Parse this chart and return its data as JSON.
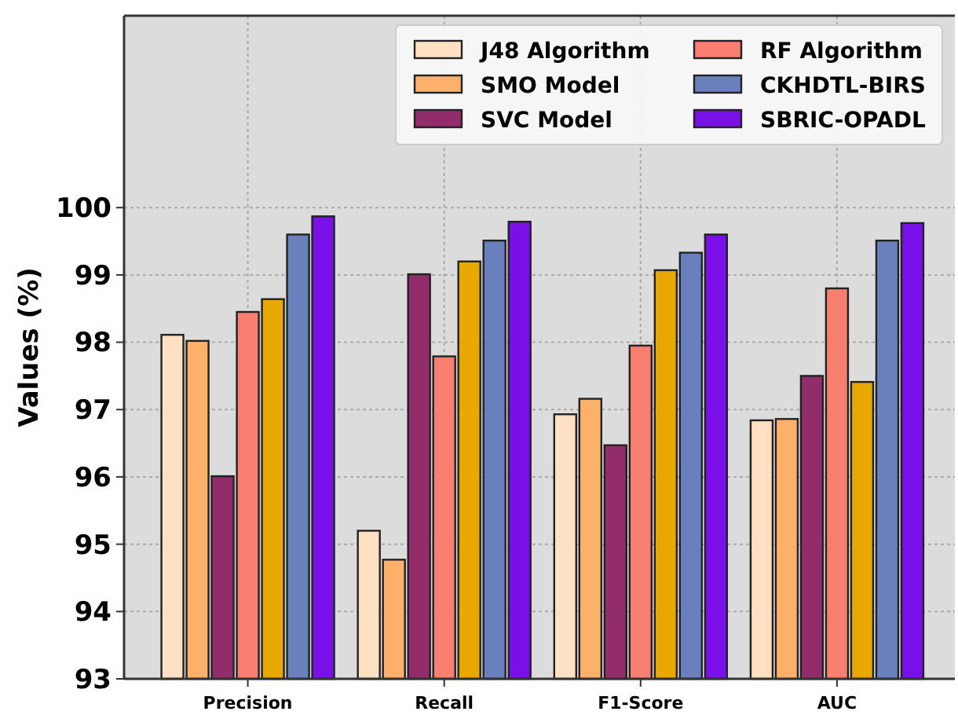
{
  "chart_data": {
    "type": "bar",
    "ylabel": "Values (%)",
    "categories": [
      "Precision",
      "Recall",
      "F1-Score",
      "AUC"
    ],
    "series": [
      {
        "name": "J48 Algorithm",
        "color": "#ffe0c2",
        "values": [
          98.11,
          95.2,
          96.93,
          96.84
        ]
      },
      {
        "name": "SMO Model",
        "color": "#fdb06a",
        "values": [
          98.02,
          94.77,
          97.16,
          96.86
        ]
      },
      {
        "name": "SVC Model",
        "color": "#922c6a",
        "values": [
          96.01,
          99.01,
          96.47,
          97.5
        ]
      },
      {
        "name": "RF Algorithm",
        "color": "#f87e70",
        "values": [
          98.45,
          97.79,
          97.95,
          98.8
        ]
      },
      {
        "color": "#e8a800",
        "values": [
          98.64,
          99.2,
          99.07,
          97.41
        ]
      },
      {
        "name": "CKHDTL-BIRS",
        "color": "#6a80bc",
        "values": [
          99.6,
          99.51,
          99.33,
          99.51
        ]
      },
      {
        "name": "SBRIC-OPADL",
        "color": "#7a10e8",
        "values": [
          99.87,
          99.79,
          99.6,
          99.77
        ]
      }
    ],
    "ylim": [
      93,
      102.85
    ],
    "yticks": [
      93,
      94,
      95,
      96,
      97,
      98,
      99,
      100
    ],
    "grid": true,
    "legend": "top right"
  }
}
